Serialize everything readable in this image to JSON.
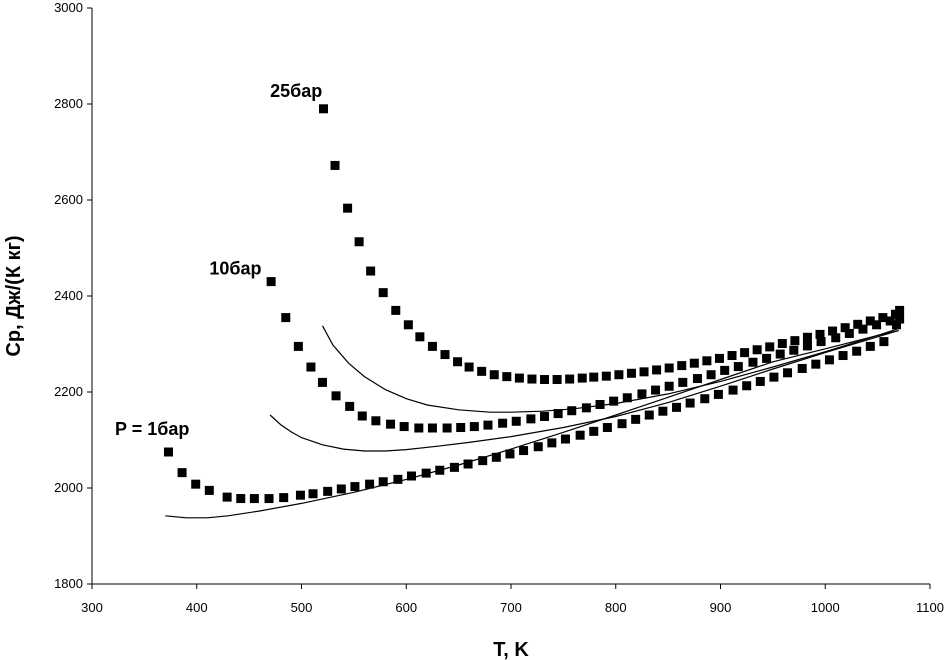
{
  "chart_data": {
    "type": "scatter",
    "title": "",
    "xlabel": "T, K",
    "ylabel": "Cp, Дж/(К кг)",
    "xlim": [
      300,
      1100
    ],
    "ylim": [
      1800,
      3000
    ],
    "x_ticks": [
      300,
      400,
      500,
      600,
      700,
      800,
      900,
      1000,
      1100
    ],
    "y_ticks": [
      1800,
      2000,
      2200,
      2400,
      2600,
      2800,
      3000
    ],
    "grid": false,
    "legend": "none",
    "annotations": [
      {
        "text": "P = 1бар",
        "x": 322,
        "y": 2110
      },
      {
        "text": "10бар",
        "x": 412,
        "y": 2445
      },
      {
        "text": "25бар",
        "x": 470,
        "y": 2815
      }
    ],
    "series": [
      {
        "style": "markers",
        "x": [
          373,
          386,
          399,
          412,
          429,
          442,
          455,
          469,
          483,
          499,
          511,
          525,
          538,
          551,
          565,
          578,
          592,
          605,
          619,
          632,
          646,
          659,
          673,
          686,
          699,
          712,
          726,
          739,
          752,
          766,
          779,
          792,
          806,
          819,
          832,
          845,
          858,
          871,
          885,
          898,
          912,
          925,
          938,
          951,
          964,
          978,
          991,
          1004,
          1017,
          1030,
          1043,
          1056,
          1068
        ],
        "y": [
          2075,
          2032,
          2008,
          1995,
          1981,
          1978,
          1978,
          1978,
          1980,
          1985,
          1988,
          1993,
          1998,
          2003,
          2008,
          2013,
          2018,
          2025,
          2031,
          2037,
          2043,
          2050,
          2057,
          2064,
          2071,
          2078,
          2086,
          2094,
          2102,
          2110,
          2118,
          2126,
          2134,
          2143,
          2152,
          2160,
          2168,
          2177,
          2186,
          2195,
          2204,
          2213,
          2222,
          2231,
          2240,
          2249,
          2258,
          2267,
          2276,
          2285,
          2295,
          2305,
          2340
        ]
      },
      {
        "style": "markers",
        "x": [
          471,
          485,
          497,
          509,
          520,
          533,
          546,
          558,
          571,
          585,
          598,
          612,
          625,
          639,
          652,
          665,
          678,
          692,
          705,
          719,
          732,
          745,
          758,
          772,
          785,
          798,
          811,
          825,
          838,
          851,
          864,
          878,
          891,
          904,
          917,
          931,
          944,
          957,
          970,
          983,
          996,
          1010,
          1023,
          1036,
          1049,
          1062,
          1071
        ],
        "y": [
          2430,
          2355,
          2295,
          2252,
          2220,
          2192,
          2170,
          2150,
          2140,
          2133,
          2128,
          2125,
          2125,
          2125,
          2126,
          2128,
          2131,
          2135,
          2139,
          2144,
          2149,
          2155,
          2161,
          2167,
          2174,
          2181,
          2188,
          2196,
          2204,
          2212,
          2220,
          2228,
          2236,
          2245,
          2253,
          2262,
          2270,
          2279,
          2287,
          2296,
          2305,
          2313,
          2322,
          2331,
          2340,
          2348,
          2352
        ]
      },
      {
        "style": "markers",
        "x": [
          521,
          532,
          544,
          555,
          566,
          578,
          590,
          602,
          613,
          625,
          637,
          649,
          660,
          672,
          684,
          696,
          708,
          720,
          732,
          744,
          756,
          768,
          779,
          791,
          803,
          815,
          827,
          839,
          851,
          863,
          875,
          887,
          899,
          911,
          923,
          935,
          947,
          959,
          971,
          983,
          995,
          1007,
          1019,
          1031,
          1043,
          1055,
          1067,
          1071
        ],
        "y": [
          2790,
          2672,
          2583,
          2513,
          2452,
          2407,
          2370,
          2340,
          2315,
          2295,
          2278,
          2263,
          2252,
          2243,
          2236,
          2232,
          2229,
          2227,
          2226,
          2226,
          2227,
          2229,
          2231,
          2233,
          2236,
          2239,
          2242,
          2246,
          2250,
          2255,
          2260,
          2265,
          2270,
          2276,
          2282,
          2288,
          2294,
          2301,
          2307,
          2314,
          2320,
          2327,
          2334,
          2341,
          2348,
          2355,
          2362,
          2370
        ]
      },
      {
        "style": "line",
        "x": [
          370,
          390,
          410,
          430,
          460,
          500,
          550,
          600,
          650,
          700,
          750,
          800,
          850,
          900,
          950,
          1000,
          1050,
          1070
        ],
        "y": [
          1942,
          1938,
          1938,
          1942,
          1952,
          1968,
          1991,
          2018,
          2048,
          2081,
          2116,
          2152,
          2189,
          2226,
          2263,
          2290,
          2318,
          2328
        ]
      },
      {
        "style": "line",
        "x": [
          470,
          480,
          490,
          500,
          520,
          540,
          560,
          580,
          600,
          630,
          660,
          700,
          750,
          800,
          850,
          900,
          950,
          1000,
          1050,
          1070
        ],
        "y": [
          2152,
          2132,
          2117,
          2105,
          2090,
          2081,
          2077,
          2077,
          2080,
          2087,
          2095,
          2107,
          2126,
          2149,
          2178,
          2212,
          2248,
          2282,
          2315,
          2328
        ]
      },
      {
        "style": "line",
        "x": [
          520,
          530,
          545,
          560,
          580,
          600,
          620,
          650,
          680,
          700,
          730,
          760,
          800,
          850,
          900,
          950,
          1000,
          1050,
          1070
        ],
        "y": [
          2338,
          2298,
          2260,
          2232,
          2205,
          2186,
          2173,
          2163,
          2158,
          2158,
          2160,
          2165,
          2176,
          2196,
          2222,
          2252,
          2284,
          2318,
          2332
        ]
      }
    ]
  }
}
